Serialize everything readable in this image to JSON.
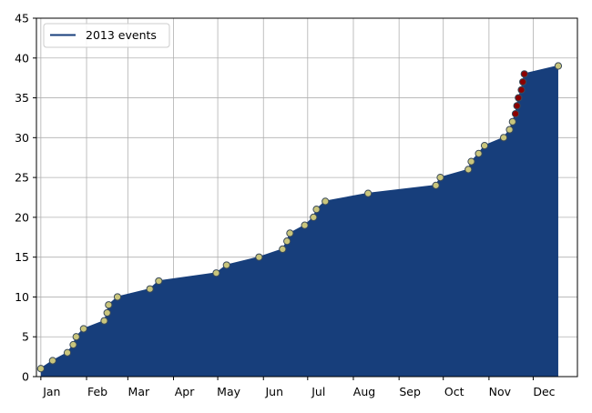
{
  "chart_data": {
    "type": "area",
    "title": "",
    "xlabel": "",
    "ylabel": "",
    "grid": true,
    "legend_position": "top-left",
    "ylim": [
      0,
      45
    ],
    "xlim": [
      "2012-12-29",
      "2013-12-31"
    ],
    "y_ticks": [
      0,
      5,
      10,
      15,
      20,
      25,
      30,
      35,
      40,
      45
    ],
    "x_ticks": [
      {
        "date": "2013-01-01",
        "label": "Jan"
      },
      {
        "date": "2013-02-01",
        "label": "Feb"
      },
      {
        "date": "2013-03-01",
        "label": "Mar"
      },
      {
        "date": "2013-04-01",
        "label": "Apr"
      },
      {
        "date": "2013-05-01",
        "label": "May"
      },
      {
        "date": "2013-06-01",
        "label": "Jun"
      },
      {
        "date": "2013-07-01",
        "label": "Jul"
      },
      {
        "date": "2013-08-01",
        "label": "Aug"
      },
      {
        "date": "2013-09-01",
        "label": "Sep"
      },
      {
        "date": "2013-10-01",
        "label": "Oct"
      },
      {
        "date": "2013-11-01",
        "label": "Nov"
      },
      {
        "date": "2013-12-01",
        "label": "Dec"
      }
    ],
    "colors": {
      "fill": "#173e7b",
      "line": "#173e7b",
      "marker": "#c9c57c",
      "marker_highlight": "#8b0000",
      "marker_edge": "#3a4a5a"
    },
    "series": [
      {
        "name": "2013 events",
        "points": [
          {
            "x": "2013-01-01",
            "y": 1
          },
          {
            "x": "2013-01-09",
            "y": 2
          },
          {
            "x": "2013-01-19",
            "y": 3
          },
          {
            "x": "2013-01-23",
            "y": 4
          },
          {
            "x": "2013-01-25",
            "y": 5
          },
          {
            "x": "2013-01-30",
            "y": 6
          },
          {
            "x": "2013-02-13",
            "y": 7
          },
          {
            "x": "2013-02-15",
            "y": 8
          },
          {
            "x": "2013-02-16",
            "y": 9
          },
          {
            "x": "2013-02-22",
            "y": 10
          },
          {
            "x": "2013-03-16",
            "y": 11
          },
          {
            "x": "2013-03-22",
            "y": 12
          },
          {
            "x": "2013-04-30",
            "y": 13
          },
          {
            "x": "2013-05-07",
            "y": 14
          },
          {
            "x": "2013-05-29",
            "y": 15
          },
          {
            "x": "2013-06-14",
            "y": 16
          },
          {
            "x": "2013-06-17",
            "y": 17
          },
          {
            "x": "2013-06-19",
            "y": 18
          },
          {
            "x": "2013-06-29",
            "y": 19
          },
          {
            "x": "2013-07-05",
            "y": 20
          },
          {
            "x": "2013-07-07",
            "y": 21
          },
          {
            "x": "2013-07-13",
            "y": 22
          },
          {
            "x": "2013-08-11",
            "y": 23
          },
          {
            "x": "2013-09-26",
            "y": 24
          },
          {
            "x": "2013-09-29",
            "y": 25
          },
          {
            "x": "2013-10-18",
            "y": 26
          },
          {
            "x": "2013-10-20",
            "y": 27
          },
          {
            "x": "2013-10-25",
            "y": 28
          },
          {
            "x": "2013-10-29",
            "y": 29
          },
          {
            "x": "2013-11-11",
            "y": 30
          },
          {
            "x": "2013-11-15",
            "y": 31
          },
          {
            "x": "2013-11-17",
            "y": 32
          },
          {
            "x": "2013-11-19",
            "y": 33,
            "highlight": true
          },
          {
            "x": "2013-11-20",
            "y": 34,
            "highlight": true
          },
          {
            "x": "2013-11-21",
            "y": 35,
            "highlight": true
          },
          {
            "x": "2013-11-23",
            "y": 36,
            "highlight": true
          },
          {
            "x": "2013-11-24",
            "y": 37,
            "highlight": true
          },
          {
            "x": "2013-11-25",
            "y": 38,
            "highlight": true
          },
          {
            "x": "2013-12-18",
            "y": 39
          }
        ]
      }
    ]
  }
}
